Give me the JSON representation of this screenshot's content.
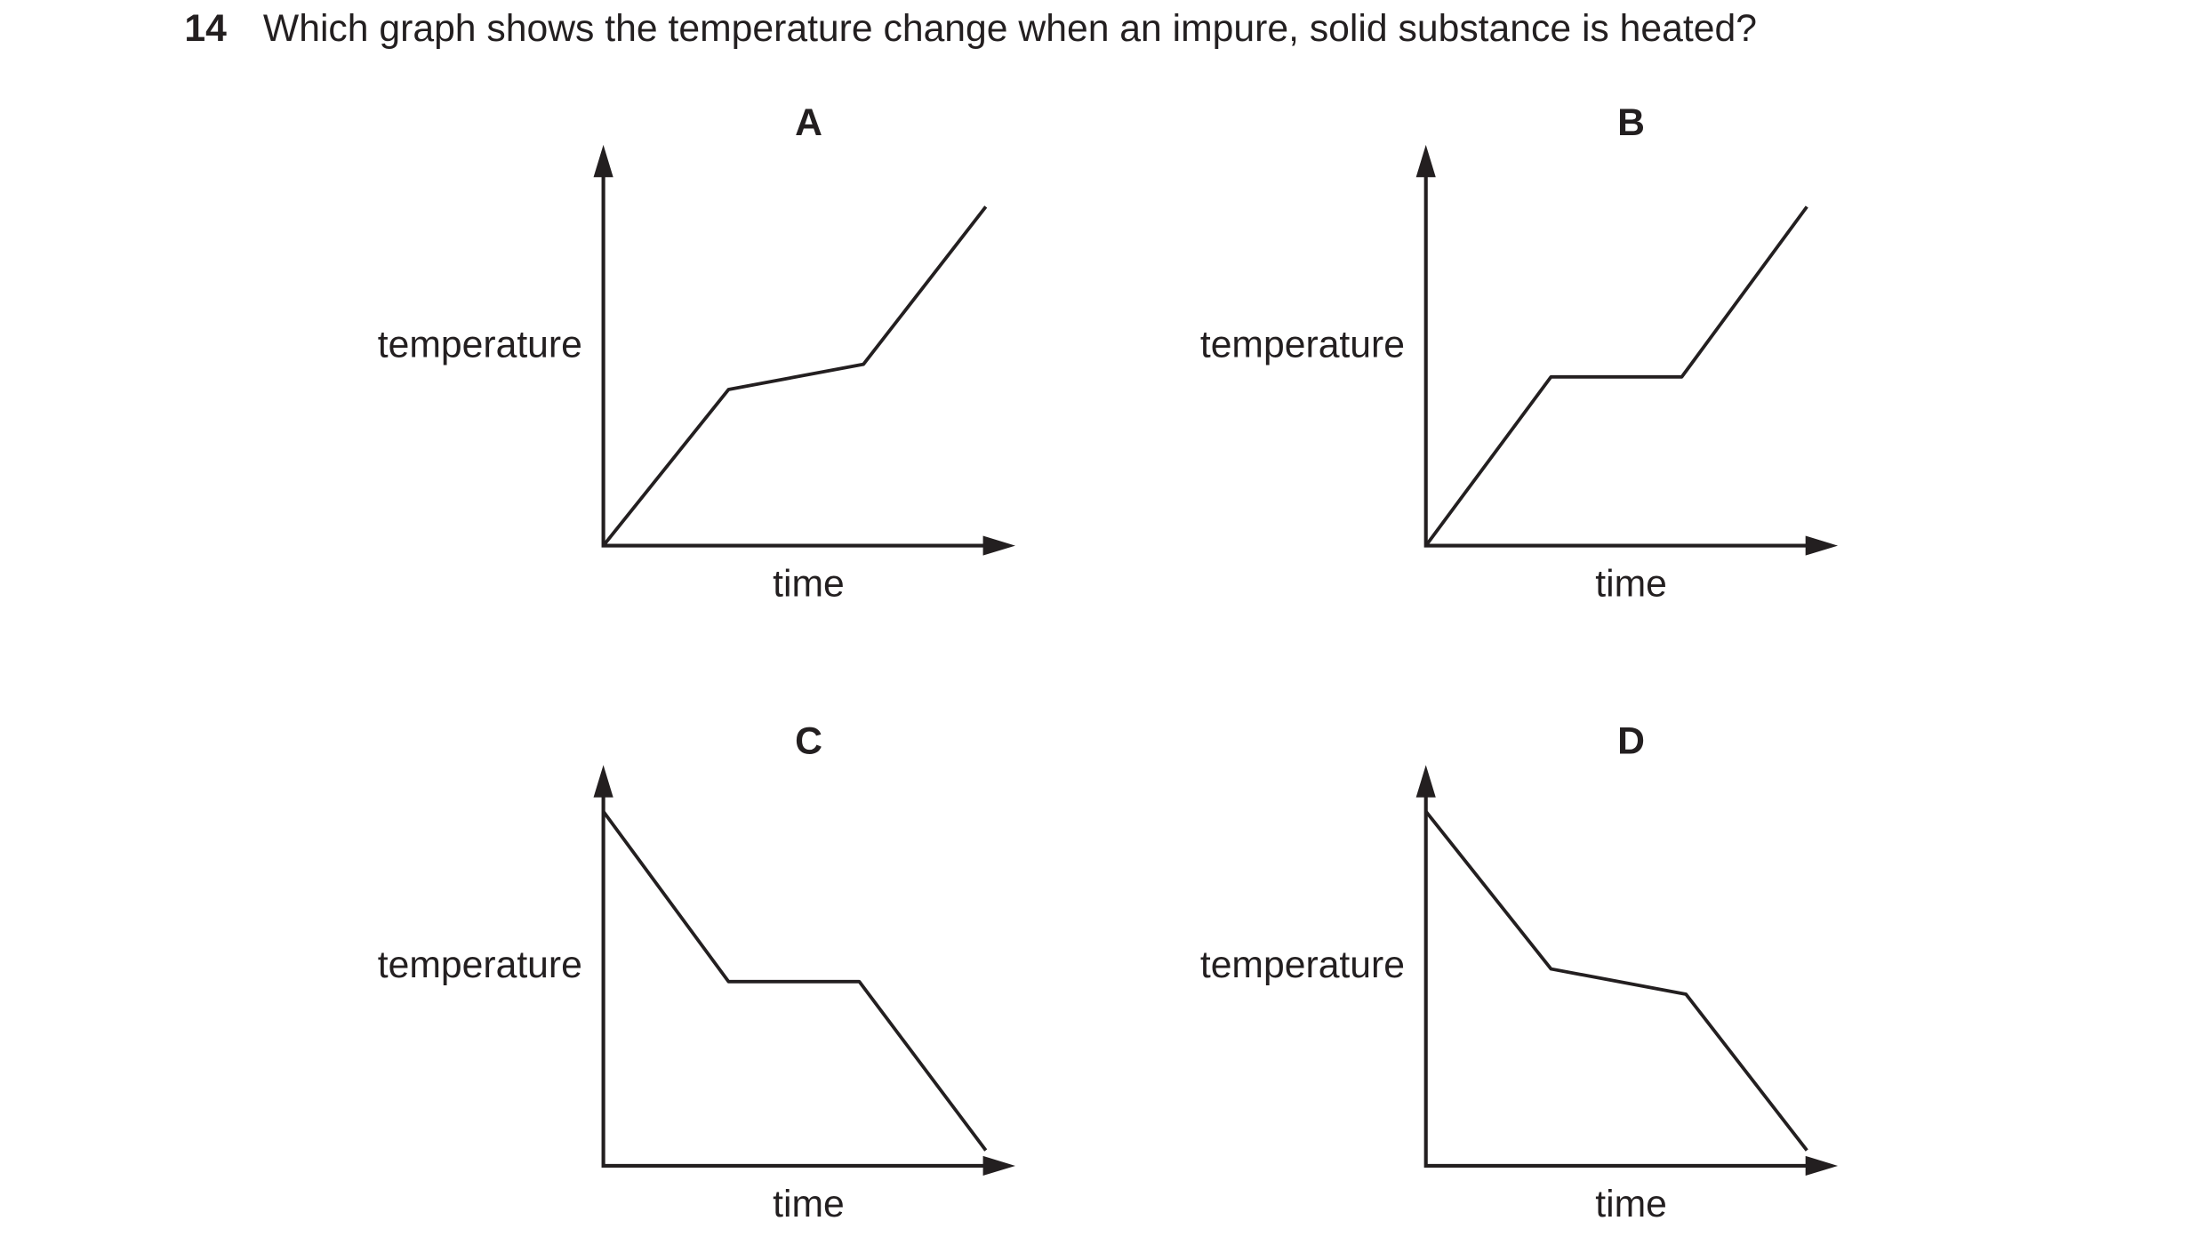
{
  "question": {
    "number": "14",
    "text": "Which graph shows the temperature change when an impure, solid substance is heated?"
  },
  "options": [
    {
      "label": "A",
      "y_axis": "temperature",
      "x_axis": "time"
    },
    {
      "label": "B",
      "y_axis": "temperature",
      "x_axis": "time"
    },
    {
      "label": "C",
      "y_axis": "temperature",
      "x_axis": "time"
    },
    {
      "label": "D",
      "y_axis": "temperature",
      "x_axis": "time"
    }
  ]
}
